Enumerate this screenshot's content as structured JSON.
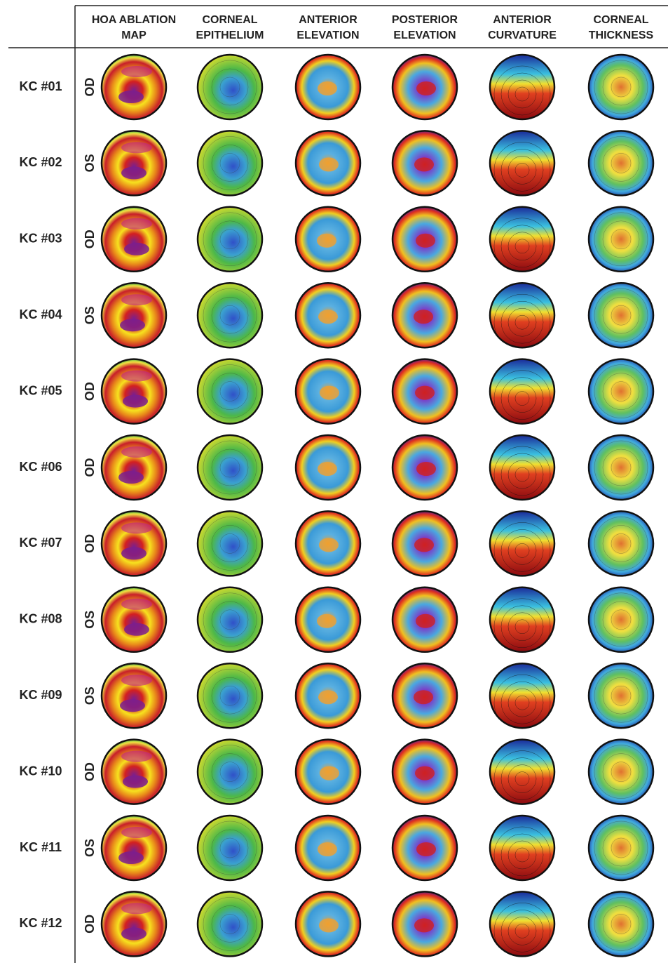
{
  "header": {
    "columns": [
      [
        "HOA ABLATION",
        "MAP"
      ],
      [
        "CORNEAL",
        "EPITHELIUM"
      ],
      [
        "ANTERIOR",
        "ELEVATION"
      ],
      [
        "POSTERIOR",
        "ELEVATION"
      ],
      [
        "ANTERIOR",
        "CURVATURE"
      ],
      [
        "CORNEAL",
        "THICKNESS"
      ]
    ]
  },
  "rows": [
    {
      "label": "KC #01",
      "eye": "OD"
    },
    {
      "label": "KC #02",
      "eye": "OS"
    },
    {
      "label": "KC #03",
      "eye": "OD"
    },
    {
      "label": "KC #04",
      "eye": "OS"
    },
    {
      "label": "KC #05",
      "eye": "OD"
    },
    {
      "label": "KC #06",
      "eye": "OD"
    },
    {
      "label": "KC #07",
      "eye": "OD"
    },
    {
      "label": "KC #08",
      "eye": "OS"
    },
    {
      "label": "KC #09",
      "eye": "OS"
    },
    {
      "label": "KC #10",
      "eye": "OD"
    },
    {
      "label": "KC #11",
      "eye": "OS"
    },
    {
      "label": "KC #12",
      "eye": "OD"
    }
  ]
}
